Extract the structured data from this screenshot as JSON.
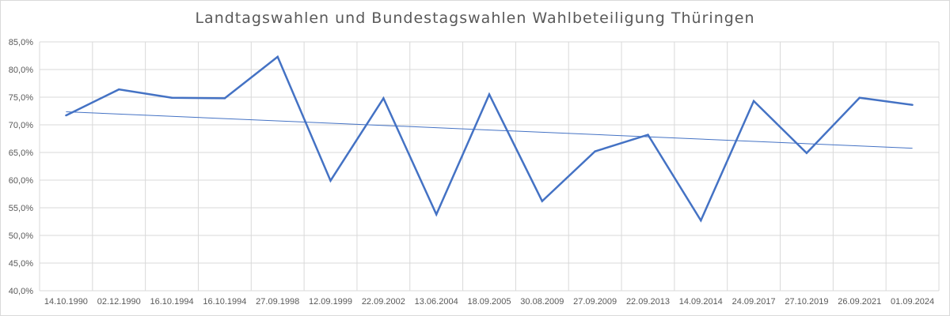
{
  "chart_data": {
    "type": "line",
    "title": "Landtagswahlen und Bundestagswahlen Wahlbeteiligung Thüringen",
    "categories": [
      "14.10.1990",
      "02.12.1990",
      "16.10.1994",
      "16.10.1994",
      "27.09.1998",
      "12.09.1999",
      "22.09.2002",
      "13.06.2004",
      "18.09.2005",
      "30.08.2009",
      "27.09.2009",
      "22.09.2013",
      "14.09.2014",
      "24.09.2017",
      "27.10.2019",
      "26.09.2021",
      "01.09.2024"
    ],
    "series": [
      {
        "values": [
          71.7,
          76.4,
          74.9,
          74.8,
          82.3,
          59.9,
          74.8,
          53.8,
          75.5,
          56.2,
          65.2,
          68.2,
          52.7,
          74.3,
          64.9,
          74.9,
          73.6
        ],
        "color": "#4472c4"
      }
    ],
    "trendline": {
      "type": "linear",
      "color": "#4472c4"
    },
    "xlabel": "",
    "ylabel": "",
    "ylim": [
      40,
      85
    ],
    "ytick_step": 5,
    "ytick_labels": [
      "40,0%",
      "45,0%",
      "50,0%",
      "55,0%",
      "60,0%",
      "65,0%",
      "70,0%",
      "75,0%",
      "80,0%",
      "85,0%"
    ],
    "grid": true,
    "legend": "none",
    "colors": {
      "gridline": "#d9d9d9",
      "text": "#595959",
      "line": "#4472c4"
    }
  }
}
